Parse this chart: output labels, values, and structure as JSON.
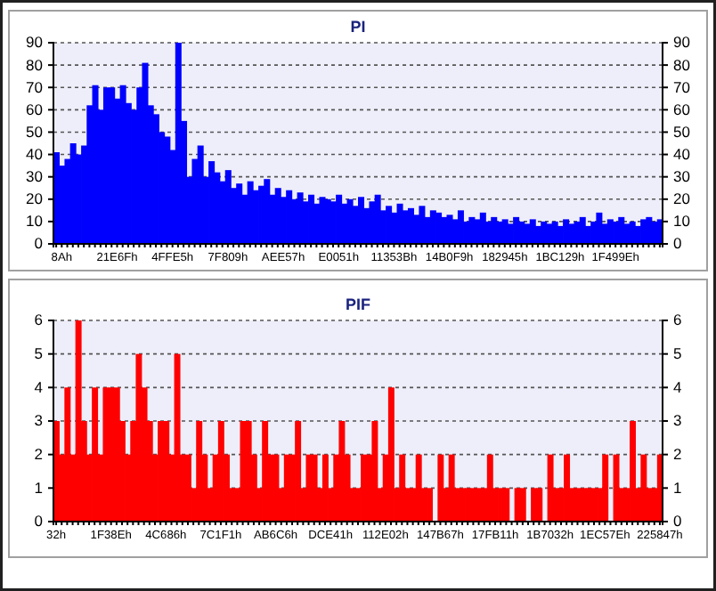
{
  "chart_data": [
    {
      "type": "bar",
      "title": "PI",
      "color": "#0000ff",
      "grid": "y",
      "categories": [
        null,
        "8Ah",
        null,
        null,
        null,
        null,
        null,
        null,
        null,
        null,
        null,
        "21E6Fh",
        null,
        null,
        null,
        null,
        null,
        null,
        null,
        null,
        null,
        "4FFE5h",
        null,
        null,
        null,
        null,
        null,
        null,
        null,
        null,
        null,
        "7F809h",
        null,
        null,
        null,
        null,
        null,
        null,
        null,
        null,
        null,
        "AEE57h",
        null,
        null,
        null,
        null,
        null,
        null,
        null,
        null,
        null,
        "E0051h",
        null,
        null,
        null,
        null,
        null,
        null,
        null,
        null,
        null,
        "11353Bh",
        null,
        null,
        null,
        null,
        null,
        null,
        null,
        null,
        null,
        "14B0F9h",
        null,
        null,
        null,
        null,
        null,
        null,
        null,
        null,
        null,
        "182945h",
        null,
        null,
        null,
        null,
        null,
        null,
        null,
        null,
        null,
        "1BC129h",
        null,
        null,
        null,
        null,
        null,
        null,
        null,
        null,
        null,
        "1F499Eh",
        null,
        null,
        null,
        null,
        null,
        null,
        null,
        null
      ],
      "values": [
        41,
        35,
        38,
        45,
        40,
        44,
        62,
        71,
        60,
        70,
        70,
        65,
        71,
        63,
        60,
        70,
        81,
        62,
        58,
        50,
        48,
        42,
        90,
        55,
        30,
        38,
        44,
        30,
        37,
        32,
        28,
        33,
        25,
        27,
        22,
        28,
        24,
        26,
        29,
        22,
        25,
        21,
        24,
        20,
        23,
        19,
        22,
        18,
        21,
        20,
        19,
        22,
        18,
        20,
        17,
        21,
        16,
        19,
        22,
        15,
        17,
        14,
        18,
        15,
        16,
        13,
        17,
        12,
        15,
        14,
        12,
        13,
        11,
        15,
        10,
        12,
        11,
        14,
        10,
        12,
        10,
        11,
        9,
        12,
        10,
        9,
        11,
        8,
        10,
        9,
        10,
        8,
        11,
        9,
        10,
        12,
        8,
        10,
        14,
        9,
        11,
        10,
        12,
        9,
        10,
        8,
        11,
        12,
        10,
        11
      ],
      "ylim": [
        0,
        90
      ],
      "yticks": [
        0,
        10,
        20,
        30,
        40,
        50,
        60,
        70,
        80,
        90
      ],
      "y2lim": [
        0,
        90
      ],
      "y2ticks": [
        0,
        10,
        20,
        30,
        40,
        50,
        60,
        70,
        80,
        90
      ]
    },
    {
      "type": "bar",
      "title": "PIF",
      "color": "#ff0000",
      "grid": "y",
      "categories": [
        "32h",
        null,
        null,
        null,
        null,
        null,
        null,
        null,
        null,
        null,
        "1F38Eh",
        null,
        null,
        null,
        null,
        null,
        null,
        null,
        null,
        null,
        "4C686h",
        null,
        null,
        null,
        null,
        null,
        null,
        null,
        null,
        null,
        "7C1F1h",
        null,
        null,
        null,
        null,
        null,
        null,
        null,
        null,
        null,
        "AB6C6h",
        null,
        null,
        null,
        null,
        null,
        null,
        null,
        null,
        null,
        "DCE41h",
        null,
        null,
        null,
        null,
        null,
        null,
        null,
        null,
        null,
        "112E02h",
        null,
        null,
        null,
        null,
        null,
        null,
        null,
        null,
        null,
        "147B67h",
        null,
        null,
        null,
        null,
        null,
        null,
        null,
        null,
        null,
        "17FB11h",
        null,
        null,
        null,
        null,
        null,
        null,
        null,
        null,
        null,
        "1B7032h",
        null,
        null,
        null,
        null,
        null,
        null,
        null,
        null,
        null,
        "1EC57Eh",
        null,
        null,
        null,
        null,
        null,
        null,
        null,
        null,
        null,
        "225847h"
      ],
      "values": [
        3,
        2,
        4,
        2,
        6,
        3,
        2,
        4,
        2,
        4,
        4,
        4,
        3,
        2,
        3,
        5,
        4,
        3,
        2,
        3,
        3,
        2,
        5,
        2,
        2,
        1,
        3,
        2,
        1,
        2,
        3,
        2,
        1,
        1,
        3,
        3,
        2,
        1,
        3,
        2,
        2,
        1,
        2,
        2,
        3,
        1,
        2,
        2,
        1,
        2,
        1,
        2,
        3,
        2,
        1,
        1,
        2,
        2,
        3,
        1,
        2,
        4,
        1,
        2,
        1,
        1,
        2,
        1,
        1,
        0,
        2,
        1,
        2,
        1,
        1,
        1,
        1,
        1,
        1,
        2,
        1,
        1,
        1,
        0,
        1,
        1,
        0,
        1,
        1,
        0,
        2,
        1,
        1,
        2,
        1,
        1,
        1,
        1,
        1,
        1,
        2,
        0,
        2,
        1,
        1,
        3,
        1,
        2,
        1,
        1,
        2
      ],
      "ylim": [
        0,
        6
      ],
      "yticks": [
        0,
        1,
        2,
        3,
        4,
        5,
        6
      ],
      "y2lim": [
        0,
        6
      ],
      "y2ticks": [
        0,
        1,
        2,
        3,
        4,
        5,
        6
      ]
    }
  ]
}
